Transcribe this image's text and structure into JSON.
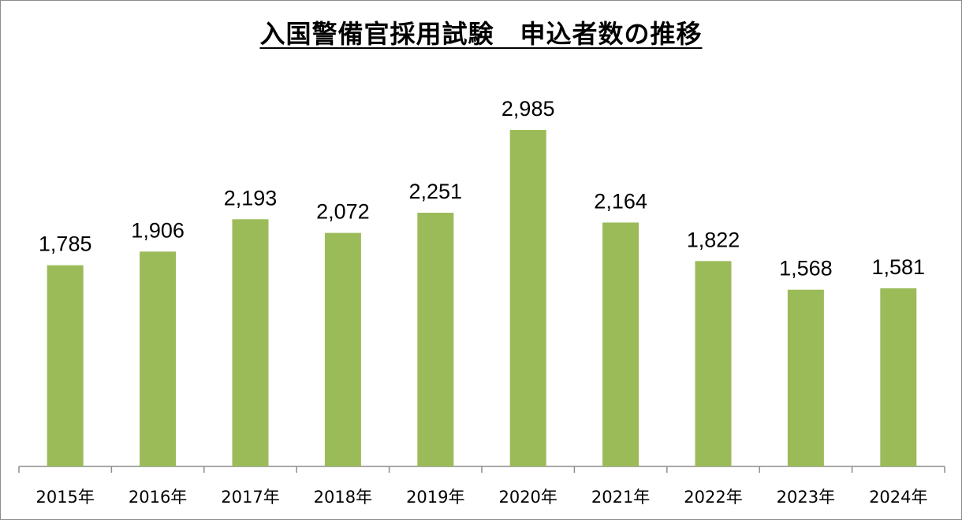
{
  "chart_data": {
    "type": "bar",
    "title": "入国警備官採用試験　申込者数の推移",
    "categories": [
      "2015年",
      "2016年",
      "2017年",
      "2018年",
      "2019年",
      "2020年",
      "2021年",
      "2022年",
      "2023年",
      "2024年"
    ],
    "values": [
      1785,
      1906,
      2193,
      2072,
      2251,
      2985,
      2164,
      1822,
      1568,
      1581
    ],
    "value_labels": [
      "1,785",
      "1,906",
      "2,193",
      "2,072",
      "2,251",
      "2,985",
      "2,164",
      "1,822",
      "1,568",
      "1,581"
    ],
    "xlabel": "",
    "ylabel": "",
    "ylim": [
      0,
      3500
    ],
    "grid": false,
    "legend": "none",
    "colors": {
      "bar": "#9bbb59",
      "axis": "#8c8c8c"
    }
  }
}
